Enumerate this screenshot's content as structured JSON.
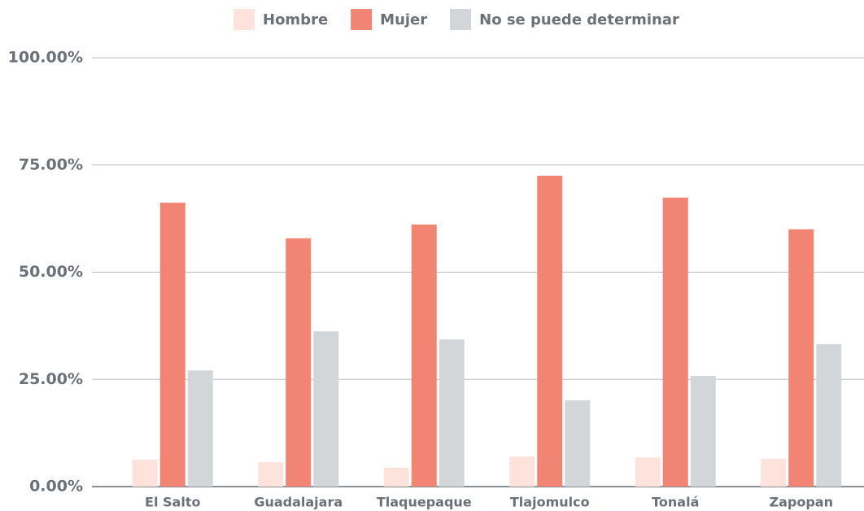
{
  "chart_data": {
    "type": "bar",
    "categories": [
      "El Salto",
      "Guadalajara",
      "Tlaquepaque",
      "Tlajomulco",
      "Tonalá",
      "Zapopan"
    ],
    "series": [
      {
        "name": "Hombre",
        "color": "#fde3dc",
        "values": [
          6.3,
          5.7,
          4.4,
          7.0,
          6.8,
          6.5
        ]
      },
      {
        "name": "Mujer",
        "color": "#f28473",
        "values": [
          66.2,
          57.9,
          61.1,
          72.5,
          67.4,
          60.0
        ]
      },
      {
        "name": "No se puede determinar",
        "color": "#d3d6d9",
        "values": [
          27.1,
          36.2,
          34.3,
          20.1,
          25.8,
          33.2
        ]
      }
    ],
    "ylim": [
      0,
      100
    ],
    "yticks": [
      {
        "value": 0,
        "label": "0.00%"
      },
      {
        "value": 25,
        "label": "25.00%"
      },
      {
        "value": 50,
        "label": "50.00%"
      },
      {
        "value": 75,
        "label": "75.00%"
      },
      {
        "value": 100,
        "label": "100.00%"
      }
    ],
    "grid": true,
    "legend": "top"
  }
}
